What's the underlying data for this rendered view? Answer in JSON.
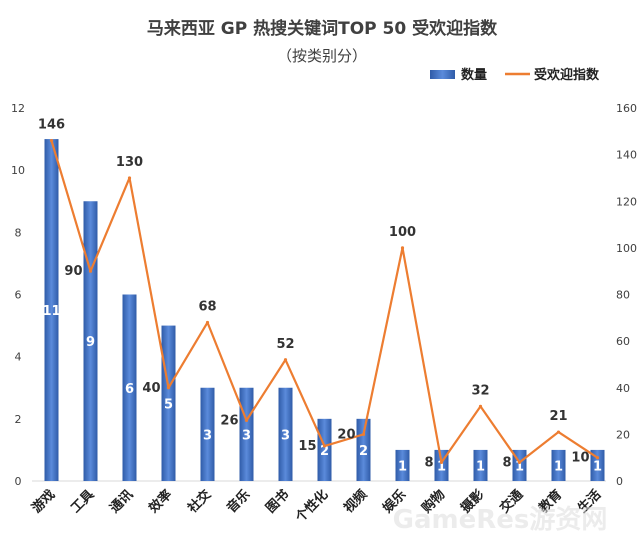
{
  "chart_data": {
    "type": "bar",
    "title": "马来西亚 GP 热搜关键词TOP 50 受欢迎指数",
    "subtitle": "（按类别分）",
    "categories": [
      "游戏",
      "工具",
      "通讯",
      "效率",
      "社交",
      "音乐",
      "图书",
      "个性化",
      "视频",
      "娱乐",
      "购物",
      "摄影",
      "交通",
      "教育",
      "生活"
    ],
    "series": [
      {
        "name": "数量",
        "type": "bar",
        "axis": "left",
        "values": [
          11,
          9,
          6,
          5,
          3,
          3,
          3,
          2,
          2,
          1,
          1,
          1,
          1,
          1,
          1
        ]
      },
      {
        "name": "受欢迎指数",
        "type": "line",
        "axis": "right",
        "values": [
          146,
          90,
          130,
          40,
          68,
          26,
          52,
          15,
          20,
          100,
          8,
          32,
          8,
          21,
          10
        ]
      }
    ],
    "y_left": {
      "min": 0,
      "max": 12,
      "ticks": [
        0,
        2,
        4,
        6,
        8,
        10,
        12
      ]
    },
    "y_right": {
      "min": 0,
      "max": 160,
      "ticks": [
        0,
        20,
        40,
        60,
        80,
        100,
        120,
        140,
        160
      ]
    },
    "legend_position": "top-right",
    "grid": false
  },
  "colors": {
    "bar": "#4472C4",
    "bar_dark": "#2F5BA8",
    "line": "#ED7D31",
    "axis_text": "#404040"
  },
  "watermark": "GameRes游资网"
}
